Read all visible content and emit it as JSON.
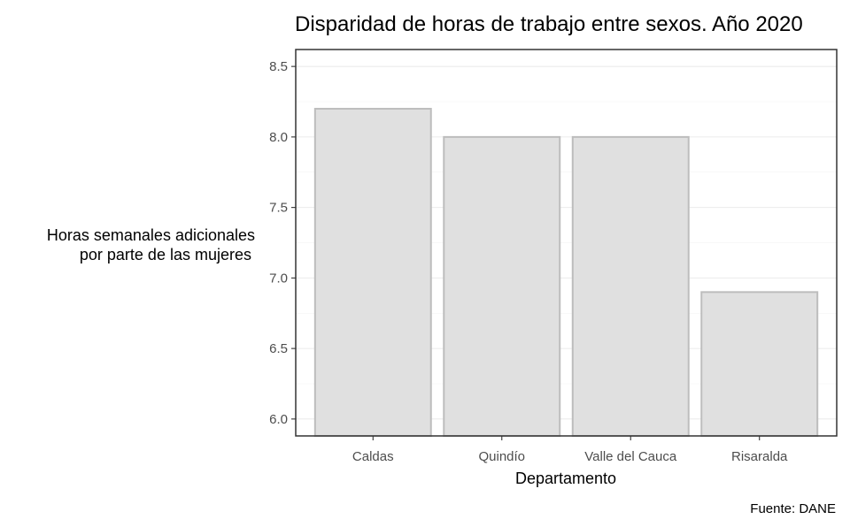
{
  "chart_data": {
    "type": "bar",
    "title": "Disparidad de horas de trabajo entre sexos. Año 2020",
    "xlabel": "Departamento",
    "ylabel": [
      "Horas semanales adicionales",
      "por parte de las mujeres"
    ],
    "caption": "Fuente: DANE",
    "categories": [
      "Caldas",
      "Quindío",
      "Valle del Cauca",
      "Risaralda"
    ],
    "values": [
      8.2,
      8.0,
      8.0,
      6.9
    ],
    "ylim": [
      5.88,
      8.62
    ],
    "yticks": [
      6.0,
      6.5,
      7.0,
      7.5,
      8.0,
      8.5
    ],
    "ytick_labels": [
      "6.0",
      "6.5",
      "7.0",
      "7.5",
      "8.0",
      "8.5"
    ],
    "grid": true,
    "colors": {
      "bar_fill": "#e0e0e0",
      "bar_stroke": "#bdbdbd"
    }
  }
}
